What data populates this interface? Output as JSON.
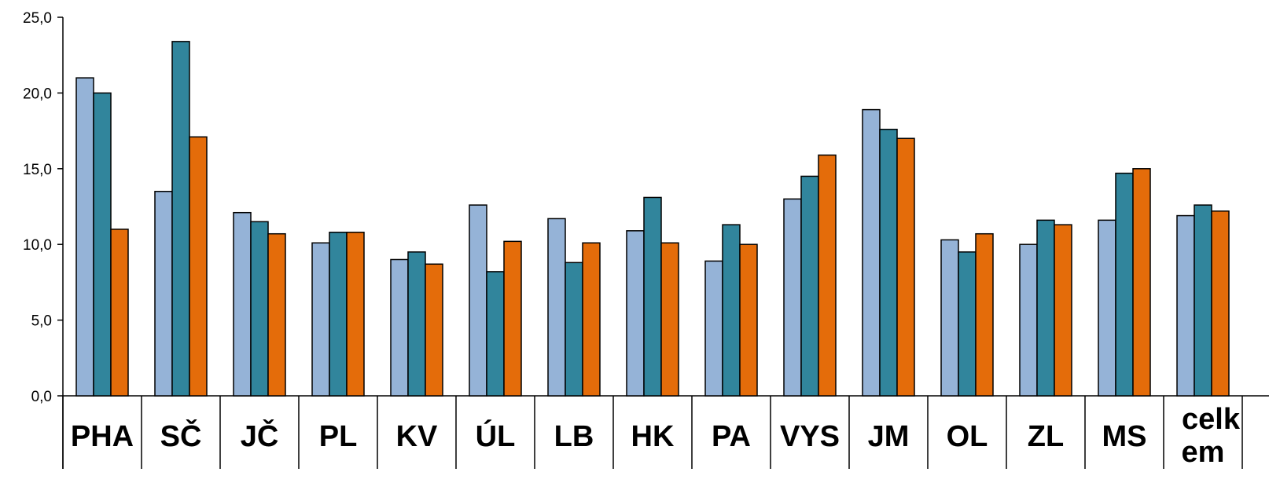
{
  "chart_data": {
    "type": "bar",
    "title": "",
    "xlabel": "",
    "ylabel": "",
    "ylim": [
      0,
      25
    ],
    "y_ticks": [
      "0,0",
      "5,0",
      "10,0",
      "15,0",
      "20,0",
      "25,0"
    ],
    "grid": false,
    "legend": "none",
    "categories": [
      "PHA",
      "SČ",
      "JČ",
      "PL",
      "KV",
      "ÚL",
      "LB",
      "HK",
      "PA",
      "VYS",
      "JM",
      "OL",
      "ZL",
      "MS",
      "celkem"
    ],
    "category_label_lines": [
      [
        "PHA"
      ],
      [
        "SČ"
      ],
      [
        "JČ"
      ],
      [
        "PL"
      ],
      [
        "KV"
      ],
      [
        "ÚL"
      ],
      [
        "LB"
      ],
      [
        "HK"
      ],
      [
        "PA"
      ],
      [
        "VYS"
      ],
      [
        "JM"
      ],
      [
        "OL"
      ],
      [
        "ZL"
      ],
      [
        "MS"
      ],
      [
        "celk",
        "em"
      ]
    ],
    "series": [
      {
        "color": "#95B3D7",
        "values": [
          21.0,
          13.5,
          12.1,
          10.1,
          9.0,
          12.6,
          11.7,
          10.9,
          8.9,
          13.0,
          18.9,
          10.3,
          10.0,
          11.6,
          11.9
        ]
      },
      {
        "color": "#31859C",
        "values": [
          20.0,
          23.4,
          11.5,
          10.8,
          9.5,
          8.2,
          8.8,
          13.1,
          11.3,
          14.5,
          17.6,
          9.5,
          11.6,
          14.7,
          12.6
        ]
      },
      {
        "color": "#E46C0A",
        "values": [
          11.0,
          17.1,
          10.7,
          10.8,
          8.7,
          10.2,
          10.1,
          10.1,
          10.0,
          15.9,
          17.0,
          10.7,
          11.3,
          15.0,
          12.2
        ]
      }
    ]
  }
}
